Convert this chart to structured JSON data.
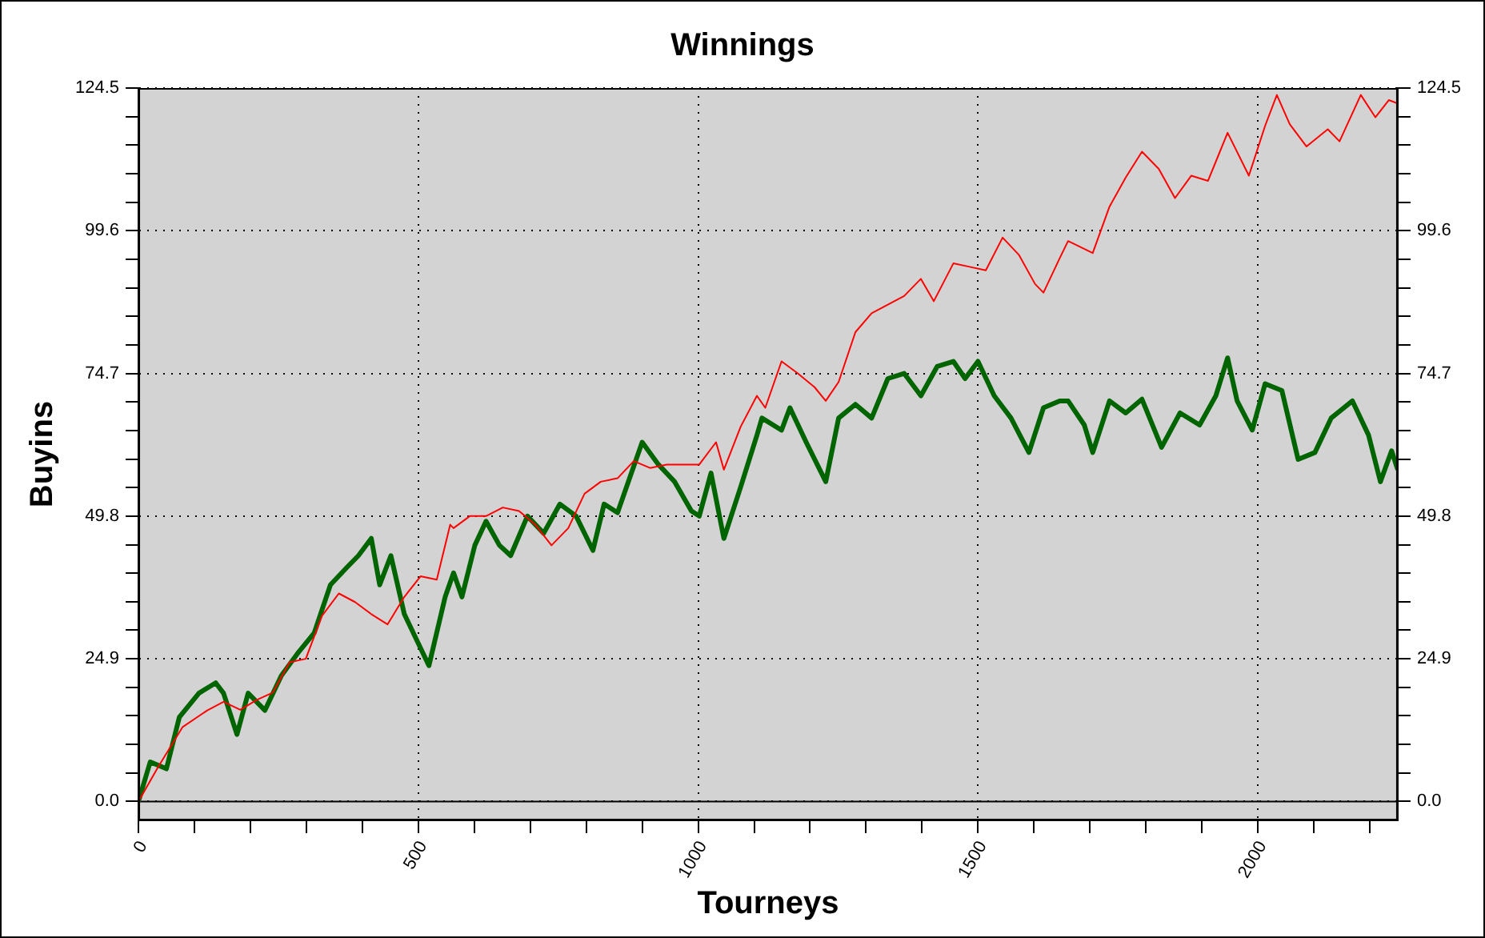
{
  "chart_data": {
    "type": "line",
    "title": "Winnings",
    "xlabel": "Tourneys",
    "ylabel": "Buyins",
    "xlim": [
      0,
      2250
    ],
    "xticks": [
      0,
      {
        "value": 100,
        "label": null
      },
      {
        "value": 200,
        "label": null
      },
      {
        "value": 300,
        "label": null
      },
      {
        "value": 400,
        "label": null
      },
      500,
      {
        "value": 600,
        "label": null
      },
      {
        "value": 700,
        "label": null
      },
      {
        "value": 800,
        "label": null
      },
      {
        "value": 900,
        "label": null
      },
      1000,
      {
        "value": 1100,
        "label": null
      },
      {
        "value": 1200,
        "label": null
      },
      {
        "value": 1300,
        "label": null
      },
      {
        "value": 1400,
        "label": null
      },
      1500,
      {
        "value": 1600,
        "label": null
      },
      {
        "value": 1700,
        "label": null
      },
      {
        "value": 1800,
        "label": null
      },
      {
        "value": 1900,
        "label": null
      },
      2000,
      {
        "value": 2100,
        "label": null
      },
      {
        "value": 2200,
        "label": null
      }
    ],
    "ylim": [
      -3.3,
      124.5
    ],
    "yticks": [
      {
        "value": 0,
        "label": "0.0"
      },
      {
        "value": 4.98,
        "label": null
      },
      {
        "value": 9.96,
        "label": null
      },
      {
        "value": 14.94,
        "label": null
      },
      {
        "value": 19.92,
        "label": null
      },
      24.9,
      {
        "value": 29.88,
        "label": null
      },
      {
        "value": 34.86,
        "label": null
      },
      {
        "value": 39.84,
        "label": null
      },
      {
        "value": 44.82,
        "label": null
      },
      49.8,
      {
        "value": 54.78,
        "label": null
      },
      {
        "value": 59.76,
        "label": null
      },
      {
        "value": 64.74,
        "label": null
      },
      {
        "value": 69.72,
        "label": null
      },
      74.7,
      {
        "value": 79.68,
        "label": null
      },
      {
        "value": 84.66,
        "label": null
      },
      {
        "value": 89.64,
        "label": null
      },
      {
        "value": 94.62,
        "label": null
      },
      99.6,
      {
        "value": 104.58,
        "label": null
      },
      {
        "value": 109.56,
        "label": null
      },
      {
        "value": 114.54,
        "label": null
      },
      {
        "value": 119.52,
        "label": null
      },
      124.5
    ],
    "y2lim": [
      -3.3,
      124.5
    ],
    "y2ticks": [
      {
        "value": 0,
        "label": "0.0"
      },
      {
        "value": 4.98,
        "label": null
      },
      {
        "value": 9.96,
        "label": null
      },
      {
        "value": 14.94,
        "label": null
      },
      {
        "value": 19.92,
        "label": null
      },
      24.9,
      {
        "value": 29.88,
        "label": null
      },
      {
        "value": 34.86,
        "label": null
      },
      {
        "value": 39.84,
        "label": null
      },
      {
        "value": 44.82,
        "label": null
      },
      49.8,
      {
        "value": 54.78,
        "label": null
      },
      {
        "value": 59.76,
        "label": null
      },
      {
        "value": 64.74,
        "label": null
      },
      {
        "value": 69.72,
        "label": null
      },
      74.7,
      {
        "value": 79.68,
        "label": null
      },
      {
        "value": 84.66,
        "label": null
      },
      {
        "value": 89.64,
        "label": null
      },
      {
        "value": 94.62,
        "label": null
      },
      99.6,
      {
        "value": 104.58,
        "label": null
      },
      {
        "value": 109.56,
        "label": null
      },
      {
        "value": 114.54,
        "label": null
      },
      {
        "value": 119.52,
        "label": null
      },
      124.5
    ],
    "grid": true,
    "legend": false,
    "marker": "none",
    "line_style": "solid",
    "ref_lines": [
      {
        "axis": "y",
        "value": 0,
        "color": "#000000",
        "line_style": "solid"
      }
    ],
    "series": [
      {
        "color": "#ff0000",
        "x": [
          0,
          35,
          79,
          123,
          152,
          182,
          211,
          240,
          270,
          299,
          328,
          358,
          387,
          416,
          445,
          475,
          504,
          533,
          557,
          563,
          592,
          621,
          651,
          680,
          709,
          738,
          768,
          797,
          826,
          856,
          885,
          914,
          944,
          973,
          1002,
          1032,
          1046,
          1076,
          1105,
          1120,
          1149,
          1178,
          1208,
          1228,
          1251,
          1281,
          1310,
          1339,
          1368,
          1398,
          1421,
          1456,
          1485,
          1514,
          1544,
          1573,
          1602,
          1617,
          1646,
          1661,
          1705,
          1735,
          1764,
          1793,
          1823,
          1852,
          1881,
          1911,
          1946,
          1984,
          2013,
          2034,
          2057,
          2087,
          2125,
          2146,
          2184,
          2210,
          2234,
          2250
        ],
        "values": [
          0,
          6,
          13,
          15.9,
          17.4,
          16,
          17.7,
          19,
          24.3,
          24.9,
          32.4,
          36.3,
          34.8,
          32.7,
          30.9,
          35.7,
          39.3,
          38.7,
          48.3,
          47.7,
          49.8,
          49.8,
          51.3,
          50.7,
          48.3,
          44.7,
          47.7,
          53.7,
          55.8,
          56.4,
          59.4,
          58.2,
          58.8,
          58.8,
          58.8,
          62.7,
          57.9,
          65.4,
          70.8,
          68.7,
          76.8,
          74.7,
          72.3,
          69.9,
          73.2,
          81.9,
          85.2,
          86.7,
          88.2,
          91.2,
          87.3,
          93.9,
          93.3,
          92.7,
          98.4,
          95.4,
          90.3,
          88.8,
          94.8,
          97.8,
          95.7,
          103.8,
          108.9,
          113.4,
          110.4,
          105.3,
          109.2,
          108.3,
          116.7,
          109.2,
          117.9,
          123.3,
          118.2,
          114.3,
          117.3,
          115.2,
          123.3,
          119.4,
          122.4,
          121.8
        ]
      },
      {
        "color": "#006400",
        "x": [
          0,
          21,
          50,
          73,
          108,
          138,
          152,
          176,
          196,
          226,
          255,
          284,
          314,
          343,
          372,
          393,
          416,
          431,
          451,
          475,
          519,
          548,
          563,
          578,
          601,
          621,
          645,
          665,
          695,
          724,
          753,
          782,
          812,
          832,
          856,
          900,
          929,
          958,
          988,
          1002,
          1023,
          1046,
          1076,
          1105,
          1114,
          1149,
          1164,
          1193,
          1228,
          1251,
          1281,
          1310,
          1339,
          1368,
          1398,
          1427,
          1456,
          1477,
          1500,
          1529,
          1559,
          1591,
          1617,
          1646,
          1661,
          1690,
          1705,
          1735,
          1764,
          1793,
          1828,
          1861,
          1896,
          1925,
          1946,
          1963,
          1990,
          2013,
          2043,
          2072,
          2102,
          2131,
          2169,
          2198,
          2219,
          2239,
          2250
        ],
        "values": [
          0,
          6.9,
          5.7,
          14.7,
          18.9,
          20.7,
          18.9,
          11.7,
          18.9,
          15.9,
          21.9,
          25.8,
          29.4,
          37.8,
          40.8,
          42.9,
          45.9,
          37.8,
          42.9,
          32.7,
          23.7,
          35.7,
          39.9,
          35.7,
          44.7,
          48.9,
          44.7,
          42.9,
          49.8,
          46.8,
          51.9,
          49.8,
          43.8,
          51.9,
          50.4,
          62.7,
          58.8,
          55.8,
          50.7,
          49.8,
          57.3,
          45.9,
          54.9,
          63.9,
          66.9,
          64.8,
          68.7,
          62.7,
          55.8,
          66.9,
          69.3,
          66.9,
          73.8,
          74.7,
          70.8,
          75.9,
          76.8,
          73.8,
          76.8,
          70.8,
          66.9,
          60.9,
          68.7,
          69.9,
          69.9,
          65.7,
          60.9,
          69.9,
          67.8,
          70.2,
          61.8,
          67.8,
          65.7,
          70.8,
          77.4,
          69.9,
          64.8,
          72.9,
          71.7,
          59.7,
          60.9,
          66.9,
          69.9,
          63.9,
          55.8,
          61.2,
          57.9
        ]
      }
    ]
  }
}
